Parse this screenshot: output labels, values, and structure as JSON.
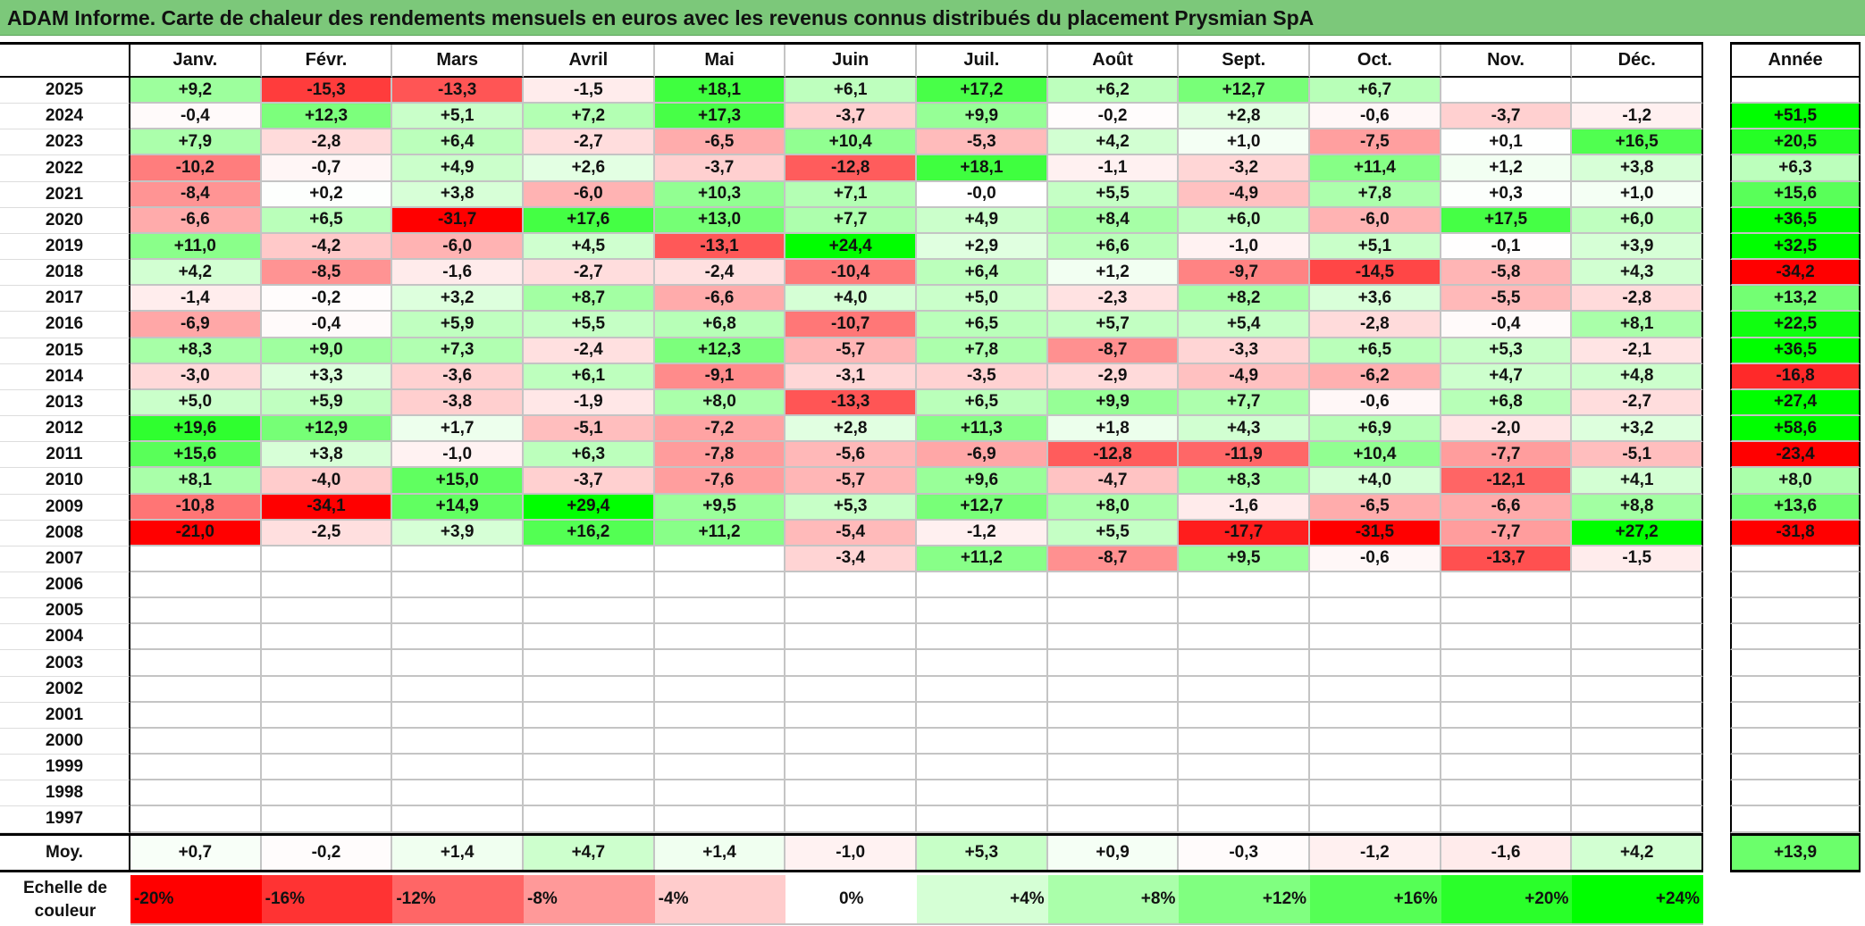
{
  "title": "ADAM Informe. Carte de chaleur des rendements mensuels en euros avec les revenus connus distribués du placement Prysmian SpA",
  "chart_data": {
    "type": "heatmap",
    "title": "ADAM Informe. Carte de chaleur des rendements mensuels en euros avec les revenus connus distribués du placement Prysmian SpA",
    "months": [
      "Janv.",
      "Févr.",
      "Mars",
      "Avril",
      "Mai",
      "Juin",
      "Juil.",
      "Août",
      "Sept.",
      "Oct.",
      "Nov.",
      "Déc."
    ],
    "year_header": "Année",
    "rows": [
      {
        "year": "2025",
        "values": [
          "+9,2",
          "-15,3",
          "-13,3",
          "-1,5",
          "+18,1",
          "+6,1",
          "+17,2",
          "+6,2",
          "+12,7",
          "+6,7",
          "",
          ""
        ],
        "annual": ""
      },
      {
        "year": "2024",
        "values": [
          "-0,4",
          "+12,3",
          "+5,1",
          "+7,2",
          "+17,3",
          "-3,7",
          "+9,9",
          "-0,2",
          "+2,8",
          "-0,6",
          "-3,7",
          "-1,2"
        ],
        "annual": "+51,5"
      },
      {
        "year": "2023",
        "values": [
          "+7,9",
          "-2,8",
          "+6,4",
          "-2,7",
          "-6,5",
          "+10,4",
          "-5,3",
          "+4,2",
          "+1,0",
          "-7,5",
          "+0,1",
          "+16,5"
        ],
        "annual": "+20,5"
      },
      {
        "year": "2022",
        "values": [
          "-10,2",
          "-0,7",
          "+4,9",
          "+2,6",
          "-3,7",
          "-12,8",
          "+18,1",
          "-1,1",
          "-3,2",
          "+11,4",
          "+1,2",
          "+3,8"
        ],
        "annual": "+6,3"
      },
      {
        "year": "2021",
        "values": [
          "-8,4",
          "+0,2",
          "+3,8",
          "-6,0",
          "+10,3",
          "+7,1",
          "-0,0",
          "+5,5",
          "-4,9",
          "+7,8",
          "+0,3",
          "+1,0"
        ],
        "annual": "+15,6"
      },
      {
        "year": "2020",
        "values": [
          "-6,6",
          "+6,5",
          "-31,7",
          "+17,6",
          "+13,0",
          "+7,7",
          "+4,9",
          "+8,4",
          "+6,0",
          "-6,0",
          "+17,5",
          "+6,0"
        ],
        "annual": "+36,5"
      },
      {
        "year": "2019",
        "values": [
          "+11,0",
          "-4,2",
          "-6,0",
          "+4,5",
          "-13,1",
          "+24,4",
          "+2,9",
          "+6,6",
          "-1,0",
          "+5,1",
          "-0,1",
          "+3,9"
        ],
        "annual": "+32,5"
      },
      {
        "year": "2018",
        "values": [
          "+4,2",
          "-8,5",
          "-1,6",
          "-2,7",
          "-2,4",
          "-10,4",
          "+6,4",
          "+1,2",
          "-9,7",
          "-14,5",
          "-5,8",
          "+4,3"
        ],
        "annual": "-34,2"
      },
      {
        "year": "2017",
        "values": [
          "-1,4",
          "-0,2",
          "+3,2",
          "+8,7",
          "-6,6",
          "+4,0",
          "+5,0",
          "-2,3",
          "+8,2",
          "+3,6",
          "-5,5",
          "-2,8"
        ],
        "annual": "+13,2"
      },
      {
        "year": "2016",
        "values": [
          "-6,9",
          "-0,4",
          "+5,9",
          "+5,5",
          "+6,8",
          "-10,7",
          "+6,5",
          "+5,7",
          "+5,4",
          "-2,8",
          "-0,4",
          "+8,1"
        ],
        "annual": "+22,5"
      },
      {
        "year": "2015",
        "values": [
          "+8,3",
          "+9,0",
          "+7,3",
          "-2,4",
          "+12,3",
          "-5,7",
          "+7,8",
          "-8,7",
          "-3,3",
          "+6,5",
          "+5,3",
          "-2,1"
        ],
        "annual": "+36,5"
      },
      {
        "year": "2014",
        "values": [
          "-3,0",
          "+3,3",
          "-3,6",
          "+6,1",
          "-9,1",
          "-3,1",
          "-3,5",
          "-2,9",
          "-4,9",
          "-6,2",
          "+4,7",
          "+4,8"
        ],
        "annual": "-16,8"
      },
      {
        "year": "2013",
        "values": [
          "+5,0",
          "+5,9",
          "-3,8",
          "-1,9",
          "+8,0",
          "-13,3",
          "+6,5",
          "+9,9",
          "+7,7",
          "-0,6",
          "+6,8",
          "-2,7"
        ],
        "annual": "+27,4"
      },
      {
        "year": "2012",
        "values": [
          "+19,6",
          "+12,9",
          "+1,7",
          "-5,1",
          "-7,2",
          "+2,8",
          "+11,3",
          "+1,8",
          "+4,3",
          "+6,9",
          "-2,0",
          "+3,2"
        ],
        "annual": "+58,6"
      },
      {
        "year": "2011",
        "values": [
          "+15,6",
          "+3,8",
          "-1,0",
          "+6,3",
          "-7,8",
          "-5,6",
          "-6,9",
          "-12,8",
          "-11,9",
          "+10,4",
          "-7,7",
          "-5,1"
        ],
        "annual": "-23,4"
      },
      {
        "year": "2010",
        "values": [
          "+8,1",
          "-4,0",
          "+15,0",
          "-3,7",
          "-7,6",
          "-5,7",
          "+9,6",
          "-4,7",
          "+8,3",
          "+4,0",
          "-12,1",
          "+4,1"
        ],
        "annual": "+8,0"
      },
      {
        "year": "2009",
        "values": [
          "-10,8",
          "-34,1",
          "+14,9",
          "+29,4",
          "+9,5",
          "+5,3",
          "+12,7",
          "+8,0",
          "-1,6",
          "-6,5",
          "-6,6",
          "+8,8"
        ],
        "annual": "+13,6"
      },
      {
        "year": "2008",
        "values": [
          "-21,0",
          "-2,5",
          "+3,9",
          "+16,2",
          "+11,2",
          "-5,4",
          "-1,2",
          "+5,5",
          "-17,7",
          "-31,5",
          "-7,7",
          "+27,2"
        ],
        "annual": "-31,8"
      },
      {
        "year": "2007",
        "values": [
          "",
          "",
          "",
          "",
          "",
          "-3,4",
          "+11,2",
          "-8,7",
          "+9,5",
          "-0,6",
          "-13,7",
          "-1,5"
        ],
        "annual": ""
      },
      {
        "year": "2006",
        "values": [
          "",
          "",
          "",
          "",
          "",
          "",
          "",
          "",
          "",
          "",
          "",
          ""
        ],
        "annual": ""
      },
      {
        "year": "2005",
        "values": [
          "",
          "",
          "",
          "",
          "",
          "",
          "",
          "",
          "",
          "",
          "",
          ""
        ],
        "annual": ""
      },
      {
        "year": "2004",
        "values": [
          "",
          "",
          "",
          "",
          "",
          "",
          "",
          "",
          "",
          "",
          "",
          ""
        ],
        "annual": ""
      },
      {
        "year": "2003",
        "values": [
          "",
          "",
          "",
          "",
          "",
          "",
          "",
          "",
          "",
          "",
          "",
          ""
        ],
        "annual": ""
      },
      {
        "year": "2002",
        "values": [
          "",
          "",
          "",
          "",
          "",
          "",
          "",
          "",
          "",
          "",
          "",
          ""
        ],
        "annual": ""
      },
      {
        "year": "2001",
        "values": [
          "",
          "",
          "",
          "",
          "",
          "",
          "",
          "",
          "",
          "",
          "",
          ""
        ],
        "annual": ""
      },
      {
        "year": "2000",
        "values": [
          "",
          "",
          "",
          "",
          "",
          "",
          "",
          "",
          "",
          "",
          "",
          ""
        ],
        "annual": ""
      },
      {
        "year": "1999",
        "values": [
          "",
          "",
          "",
          "",
          "",
          "",
          "",
          "",
          "",
          "",
          "",
          ""
        ],
        "annual": ""
      },
      {
        "year": "1998",
        "values": [
          "",
          "",
          "",
          "",
          "",
          "",
          "",
          "",
          "",
          "",
          "",
          ""
        ],
        "annual": ""
      },
      {
        "year": "1997",
        "values": [
          "",
          "",
          "",
          "",
          "",
          "",
          "",
          "",
          "",
          "",
          "",
          ""
        ],
        "annual": ""
      }
    ],
    "average": {
      "label": "Moy.",
      "values": [
        "+0,7",
        "-0,2",
        "+1,4",
        "+4,7",
        "+1,4",
        "-1,0",
        "+5,3",
        "+0,9",
        "-0,3",
        "-1,2",
        "-1,6",
        "+4,2"
      ],
      "annual": "+13,9"
    },
    "color_scale": {
      "label": "Echelle de couleur",
      "min": -20,
      "max": 24,
      "negative_color": "#ff0000",
      "neutral_color": "#ffffff",
      "positive_color": "#00ff00",
      "stops": [
        "-20%",
        "-16%",
        "-12%",
        "-8%",
        "-4%",
        "0%",
        "+4%",
        "+8%",
        "+12%",
        "+16%",
        "+20%",
        "+24%"
      ]
    }
  }
}
